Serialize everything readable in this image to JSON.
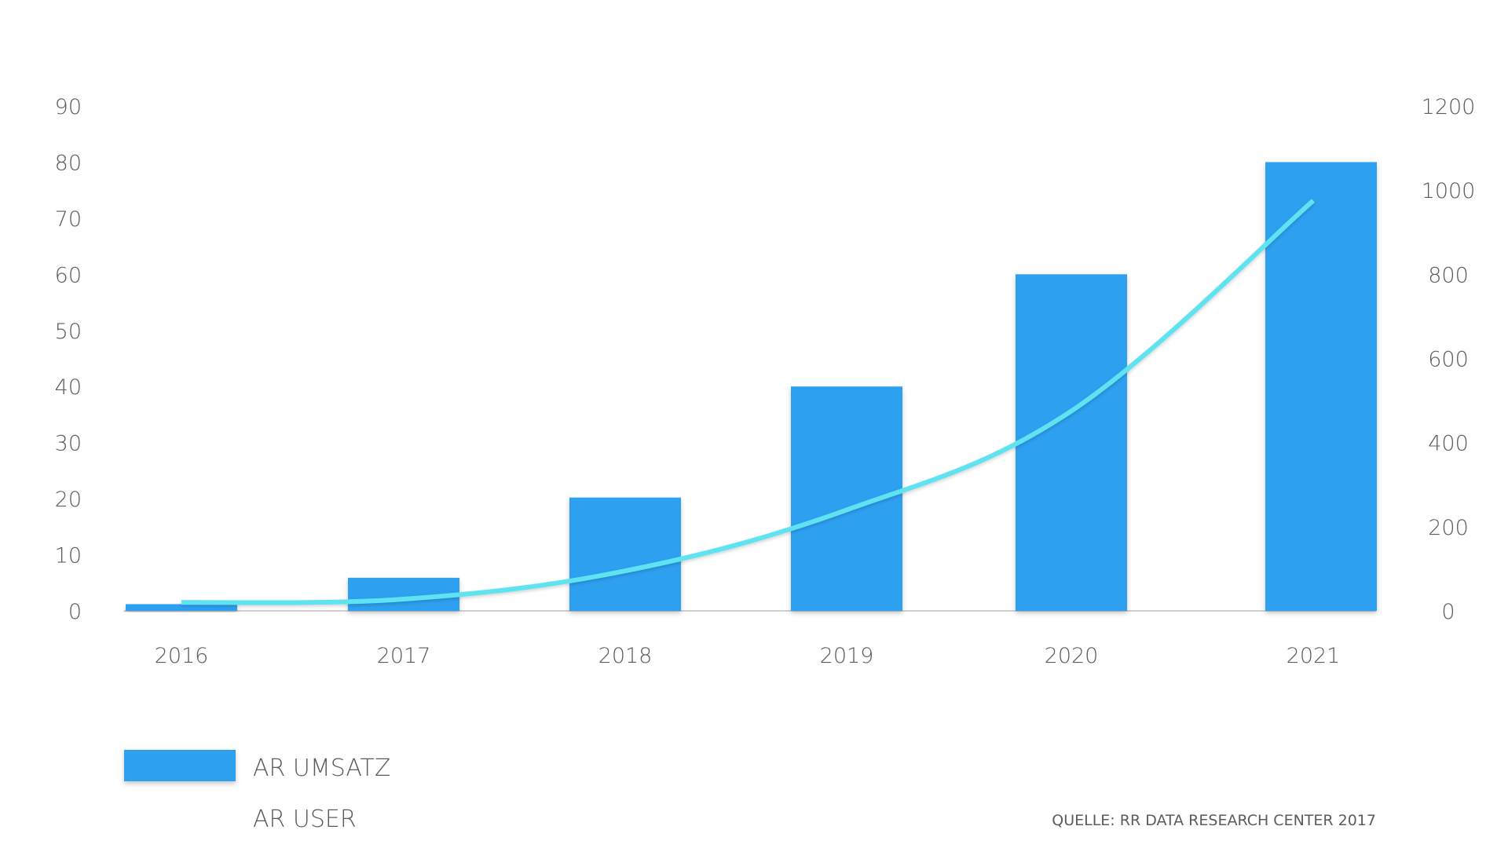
{
  "chart_data": {
    "type": "bar",
    "categories": [
      "2016",
      "2017",
      "2018",
      "2019",
      "2020",
      "2021"
    ],
    "series": [
      {
        "name": "AR UMSATZ",
        "type": "bar",
        "axis": "left",
        "color": "#2fa0f0",
        "values": [
          1.2,
          5.9,
          20.2,
          40.0,
          60.0,
          80.0
        ]
      },
      {
        "name": "AR USER",
        "type": "line",
        "axis": "right",
        "color": "#5fe3f1",
        "values": [
          20,
          28,
          95,
          240,
          475,
          975
        ]
      }
    ],
    "left_axis": {
      "ticks": [
        "0",
        "10",
        "20",
        "30",
        "40",
        "50",
        "60",
        "70",
        "80",
        "90"
      ],
      "ylim": [
        0,
        90
      ]
    },
    "right_axis": {
      "ticks": [
        "0",
        "200",
        "400",
        "600",
        "800",
        "1000",
        "1200"
      ],
      "ylim": [
        0,
        1200
      ]
    },
    "grid": false,
    "legend_position": "bottom-left",
    "source": "QUELLE: RR DATA RESEARCH CENTER 2017"
  }
}
